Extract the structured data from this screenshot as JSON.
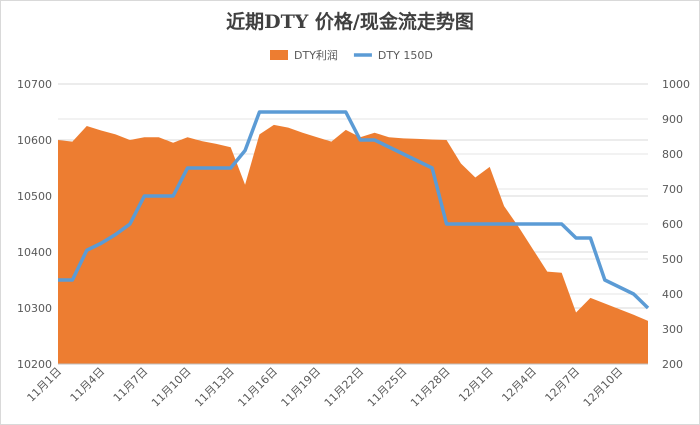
{
  "chart_data": {
    "type": "area-line",
    "title": "近期DTY 价格/现金流走势图",
    "categories": [
      "11月1日",
      null,
      null,
      "11月4日",
      null,
      null,
      "11月7日",
      null,
      null,
      "11月10日",
      null,
      null,
      "11月13日",
      null,
      null,
      "11月16日",
      null,
      null,
      "11月19日",
      null,
      null,
      "11月22日",
      null,
      null,
      "11月25日",
      null,
      null,
      "11月28日",
      null,
      null,
      "12月1日",
      null,
      null,
      "12月4日",
      null,
      null,
      "12月7日",
      null,
      null,
      "12月10日",
      null,
      null
    ],
    "series": [
      {
        "name": "DTY利润",
        "color": "#ed7d31",
        "kind": "area",
        "values": [
          10600,
          10597,
          10625,
          10617,
          10610,
          10600,
          10605,
          10605,
          10595,
          10605,
          10598,
          10593,
          10587,
          10520,
          10610,
          10627,
          10622,
          10613,
          10605,
          10597,
          10618,
          10605,
          10613,
          10605,
          10603,
          10602,
          10601,
          10600,
          10558,
          10533,
          10552,
          10482,
          10445,
          10405,
          10365,
          10363,
          10292,
          10318,
          10308,
          10298,
          10288,
          10277
        ]
      },
      {
        "name": "DTY 150D",
        "color": "#5b9bd5",
        "kind": "line",
        "axis": "y2",
        "values": [
          440,
          440,
          525,
          545,
          570,
          600,
          680,
          680,
          680,
          760,
          760,
          760,
          760,
          810,
          920,
          920,
          920,
          920,
          920,
          920,
          920,
          840,
          840,
          820,
          800,
          780,
          760,
          600,
          600,
          600,
          600,
          600,
          600,
          600,
          600,
          600,
          560,
          560,
          440,
          420,
          400,
          360
        ]
      }
    ],
    "ylim": [
      10200,
      10700
    ],
    "yticks": [
      10200,
      10300,
      10400,
      10500,
      10600,
      10700
    ],
    "y2lim": [
      200,
      1000
    ],
    "y2ticks": [
      200,
      300,
      400,
      500,
      600,
      700,
      800,
      900,
      1000
    ],
    "grid": true
  }
}
